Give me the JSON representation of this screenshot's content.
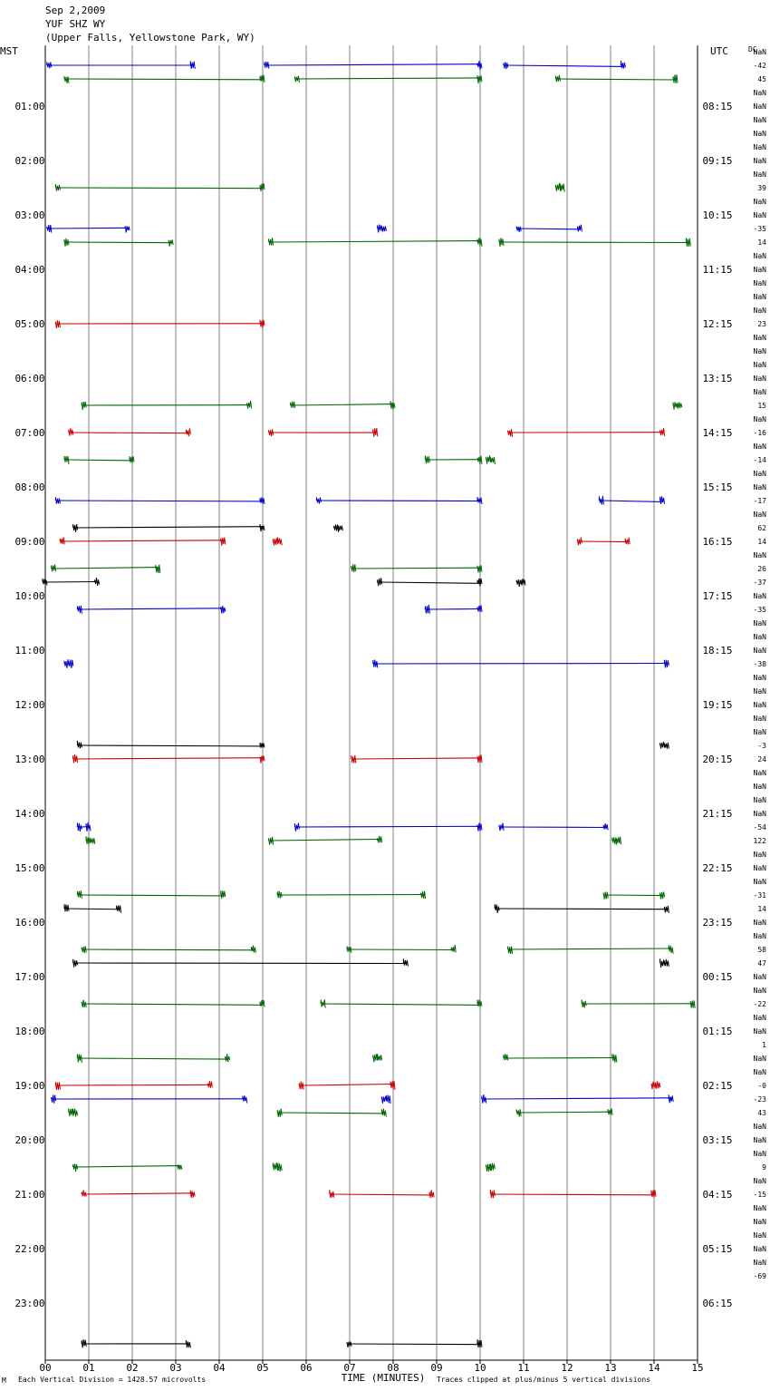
{
  "header": {
    "date": "Sep 2,2009",
    "station": "YUF SHZ WY",
    "location": "(Upper Falls, Yellowstone Park, WY)"
  },
  "labels": {
    "left_zone": "MST",
    "right_zone": "UTC",
    "dc_header": "DC",
    "x_axis": "TIME (MINUTES)",
    "footer_left": "Each Vertical Division = 1428.57 microvolts",
    "footer_right": "Traces clipped at plus/minus 5 vertical divisions",
    "corner_mark": "M"
  },
  "colors": {
    "axis": "#000000",
    "grid": "#808080",
    "trace_cycle": [
      "#cc0000",
      "#0000cc",
      "#006600",
      "#000000"
    ]
  },
  "chart_data": {
    "type": "line",
    "title": "YUF SHZ WY",
    "xlabel": "TIME (MINUTES)",
    "xlim": [
      0,
      15
    ],
    "x_ticks": [
      "00",
      "01",
      "02",
      "03",
      "04",
      "05",
      "06",
      "07",
      "08",
      "09",
      "10",
      "11",
      "12",
      "13",
      "14",
      "15"
    ],
    "grid": "vertical lines at every minute",
    "rows_per_hour": 4,
    "row_count": 96,
    "left_hour_labels": [
      "01:00",
      "02:00",
      "03:00",
      "04:00",
      "05:00",
      "06:00",
      "07:00",
      "08:00",
      "09:00",
      "10:00",
      "11:00",
      "12:00",
      "13:00",
      "14:00",
      "15:00",
      "16:00",
      "17:00",
      "18:00",
      "19:00",
      "20:00",
      "21:00",
      "22:00",
      "23:00"
    ],
    "right_hour_labels": [
      "08:15",
      "09:15",
      "10:15",
      "11:15",
      "12:15",
      "13:15",
      "14:15",
      "15:15",
      "16:15",
      "17:15",
      "18:15",
      "19:15",
      "20:15",
      "21:15",
      "22:15",
      "23:15",
      "00:15",
      "01:15",
      "02:15",
      "03:15",
      "04:15",
      "05:15",
      "06:15"
    ],
    "dc_offsets": [
      "NaN",
      "-42",
      "45",
      "NaN",
      "NaN",
      "NaN",
      "NaN",
      "NaN",
      "NaN",
      "NaN",
      "39",
      "NaN",
      "NaN",
      "-35",
      "14",
      "NaN",
      "NaN",
      "NaN",
      "NaN",
      "NaN",
      "23",
      "NaN",
      "NaN",
      "NaN",
      "NaN",
      "NaN",
      "15",
      "NaN",
      "-16",
      "NaN",
      "-14",
      "NaN",
      "NaN",
      "-17",
      "NaN",
      "62",
      "14",
      "NaN",
      "26",
      "-37",
      "NaN",
      "-35",
      "NaN",
      "NaN",
      "NaN",
      "-38",
      "NaN",
      "NaN",
      "NaN",
      "NaN",
      "NaN",
      "-3",
      "24",
      "NaN",
      "NaN",
      "NaN",
      "NaN",
      "-54",
      "122",
      "NaN",
      "NaN",
      "NaN",
      "-31",
      "14",
      "NaN",
      "NaN",
      "58",
      "47",
      "NaN",
      "NaN",
      "-22",
      "NaN",
      "NaN",
      "1",
      "NaN",
      "NaN",
      "-0",
      "-23",
      "43",
      "NaN",
      "NaN",
      "NaN",
      "9",
      "NaN",
      "-15",
      "NaN",
      "NaN",
      "NaN",
      "NaN",
      "NaN",
      "-69"
    ],
    "segments": [
      {
        "row": 1,
        "segs": [
          [
            0.1,
            3.4
          ],
          [
            5.1,
            10.0
          ],
          [
            10.6,
            13.3
          ]
        ]
      },
      {
        "row": 2,
        "segs": [
          [
            0.5,
            5.0
          ],
          [
            5.8,
            10.0
          ],
          [
            11.8,
            14.5
          ]
        ]
      },
      {
        "row": 10,
        "segs": [
          [
            0.3,
            5.0
          ],
          [
            11.8,
            11.9
          ]
        ]
      },
      {
        "row": 13,
        "segs": [
          [
            0.1,
            1.9
          ],
          [
            7.7,
            7.8
          ],
          [
            10.9,
            12.3
          ]
        ]
      },
      {
        "row": 14,
        "segs": [
          [
            0.5,
            2.9
          ],
          [
            5.2,
            10.0
          ],
          [
            10.5,
            14.8
          ]
        ]
      },
      {
        "row": 20,
        "segs": [
          [
            0.3,
            5.0
          ]
        ]
      },
      {
        "row": 26,
        "segs": [
          [
            0.9,
            4.7
          ],
          [
            5.7,
            8.0
          ],
          [
            14.5,
            14.6
          ]
        ]
      },
      {
        "row": 28,
        "segs": [
          [
            0.6,
            3.3
          ],
          [
            5.2,
            7.6
          ],
          [
            10.7,
            14.2
          ]
        ]
      },
      {
        "row": 30,
        "segs": [
          [
            0.5,
            2.0
          ],
          [
            8.8,
            10.0
          ],
          [
            10.2,
            10.3
          ]
        ]
      },
      {
        "row": 33,
        "segs": [
          [
            0.3,
            5.0
          ],
          [
            6.3,
            10.0
          ],
          [
            12.8,
            14.2
          ]
        ]
      },
      {
        "row": 35,
        "segs": [
          [
            0.7,
            5.0
          ],
          [
            6.7,
            6.8
          ]
        ]
      },
      {
        "row": 36,
        "segs": [
          [
            0.4,
            4.1
          ],
          [
            5.3,
            5.4
          ],
          [
            12.3,
            13.4
          ]
        ]
      },
      {
        "row": 38,
        "segs": [
          [
            0.2,
            2.6
          ],
          [
            7.1,
            10.0
          ]
        ]
      },
      {
        "row": 39,
        "segs": [
          [
            0.0,
            1.2
          ],
          [
            7.7,
            10.0
          ],
          [
            10.9,
            11.0
          ]
        ]
      },
      {
        "row": 41,
        "segs": [
          [
            0.8,
            4.1
          ],
          [
            8.8,
            10.0
          ]
        ]
      },
      {
        "row": 45,
        "segs": [
          [
            0.5,
            0.6
          ],
          [
            7.6,
            14.3
          ]
        ]
      },
      {
        "row": 51,
        "segs": [
          [
            0.8,
            5.0
          ],
          [
            14.2,
            14.3
          ]
        ]
      },
      {
        "row": 52,
        "segs": [
          [
            0.7,
            5.0
          ],
          [
            7.1,
            10.0
          ]
        ]
      },
      {
        "row": 57,
        "segs": [
          [
            0.8,
            1.0
          ],
          [
            5.8,
            10.0
          ],
          [
            10.5,
            12.9
          ]
        ]
      },
      {
        "row": 58,
        "segs": [
          [
            1.0,
            1.1
          ],
          [
            5.2,
            7.7
          ],
          [
            13.1,
            13.2
          ]
        ]
      },
      {
        "row": 62,
        "segs": [
          [
            0.8,
            4.1
          ],
          [
            5.4,
            8.7
          ],
          [
            12.9,
            14.2
          ]
        ]
      },
      {
        "row": 63,
        "segs": [
          [
            0.5,
            1.7
          ],
          [
            10.4,
            14.3
          ]
        ]
      },
      {
        "row": 66,
        "segs": [
          [
            0.9,
            4.8
          ],
          [
            7.0,
            9.4
          ],
          [
            10.7,
            14.4
          ]
        ]
      },
      {
        "row": 67,
        "segs": [
          [
            0.7,
            8.3
          ],
          [
            14.2,
            14.3
          ]
        ]
      },
      {
        "row": 70,
        "segs": [
          [
            0.9,
            5.0
          ],
          [
            6.4,
            10.0
          ],
          [
            12.4,
            14.9
          ]
        ]
      },
      {
        "row": 74,
        "segs": [
          [
            0.8,
            4.2
          ],
          [
            7.6,
            7.7
          ],
          [
            10.6,
            13.1
          ]
        ]
      },
      {
        "row": 76,
        "segs": [
          [
            0.3,
            3.8
          ],
          [
            5.9,
            8.0
          ],
          [
            14.0,
            14.1
          ]
        ]
      },
      {
        "row": 77,
        "segs": [
          [
            0.2,
            4.6
          ],
          [
            7.8,
            7.9
          ],
          [
            10.1,
            14.4
          ]
        ]
      },
      {
        "row": 78,
        "segs": [
          [
            0.6,
            0.7
          ],
          [
            5.4,
            7.8
          ],
          [
            10.9,
            13.0
          ]
        ]
      },
      {
        "row": 82,
        "segs": [
          [
            0.7,
            3.1
          ],
          [
            5.3,
            5.4
          ],
          [
            10.2,
            10.3
          ]
        ]
      },
      {
        "row": 84,
        "segs": [
          [
            0.9,
            3.4
          ],
          [
            6.6,
            8.9
          ],
          [
            10.3,
            14.0
          ]
        ]
      },
      {
        "row": 95,
        "segs": [
          [
            0.9,
            3.3
          ],
          [
            7.0,
            10.0
          ]
        ]
      }
    ]
  }
}
